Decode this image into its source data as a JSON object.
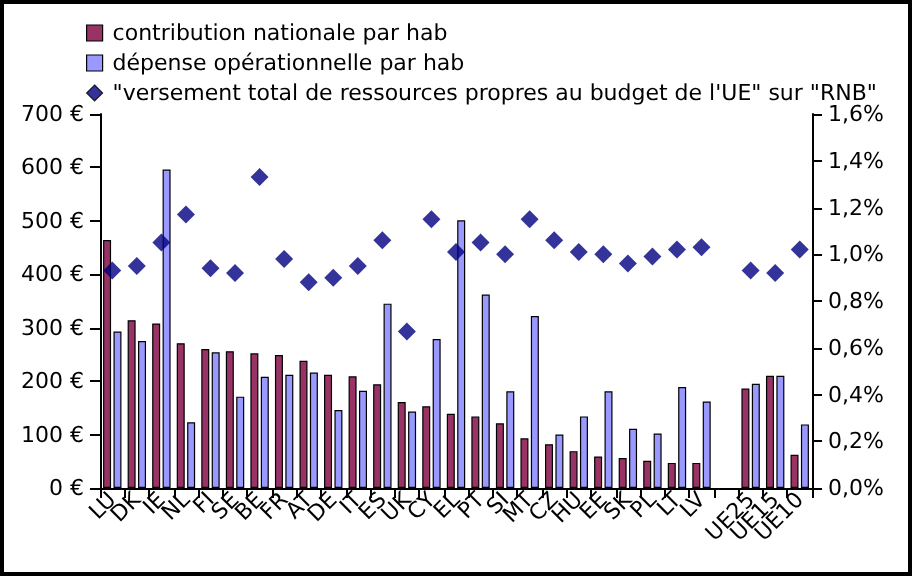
{
  "chart_data": {
    "type": "bar",
    "categories": [
      "LU",
      "DK",
      "IE",
      "NL",
      "FI",
      "SE",
      "BE",
      "FR",
      "AT",
      "DE",
      "IT",
      "ES",
      "UK",
      "CY",
      "EL",
      "PT",
      "SI",
      "MT",
      "CZ",
      "HU",
      "EE",
      "SK",
      "PL",
      "LT",
      "LV",
      null,
      "UE25",
      "UE15",
      "UE10"
    ],
    "series": [
      {
        "name": "contribution nationale par hab",
        "color": "#993366",
        "values": [
          464,
          314,
          308,
          271,
          260,
          256,
          252,
          249,
          238,
          212,
          209,
          194,
          161,
          153,
          139,
          134,
          121,
          93,
          82,
          69,
          59,
          56,
          51,
          47,
          47,
          null,
          186,
          210,
          62
        ]
      },
      {
        "name": "dépense opérationnelle par hab",
        "color": "#9999ff",
        "values": [
          293,
          275,
          596,
          123,
          254,
          171,
          208,
          212,
          216,
          146,
          182,
          345,
          143,
          279,
          501,
          362,
          181,
          322,
          100,
          134,
          181,
          111,
          102,
          189,
          162,
          null,
          195,
          210,
          119
        ]
      },
      {
        "name": "\"versement total de ressources propres au budget de l'UE\" sur \"RNB\"",
        "type": "scatter",
        "axis": "y2",
        "marker": "diamond",
        "color": "#000080",
        "values": [
          0.93,
          0.95,
          1.05,
          1.17,
          0.94,
          0.92,
          1.33,
          0.98,
          0.88,
          0.9,
          0.95,
          1.06,
          0.67,
          1.15,
          1.01,
          1.05,
          1.0,
          1.15,
          1.06,
          1.01,
          1.0,
          0.96,
          0.99,
          1.02,
          1.03,
          null,
          0.93,
          0.92,
          1.02
        ]
      }
    ],
    "ylim": [
      0,
      700
    ],
    "yticks": [
      {
        "value": 0,
        "label": "0 €"
      },
      {
        "value": 100,
        "label": "100 €"
      },
      {
        "value": 200,
        "label": "200 €"
      },
      {
        "value": 300,
        "label": "300 €"
      },
      {
        "value": 400,
        "label": "400 €"
      },
      {
        "value": 500,
        "label": "500 €"
      },
      {
        "value": 600,
        "label": "600 €"
      },
      {
        "value": 700,
        "label": "700 €"
      }
    ],
    "y2lim": [
      0,
      1.6
    ],
    "y2ticks": [
      {
        "value": 0,
        "label": "0,0%"
      },
      {
        "value": 0.2,
        "label": "0,2%"
      },
      {
        "value": 0.4,
        "label": "0,4%"
      },
      {
        "value": 0.6,
        "label": "0,6%"
      },
      {
        "value": 0.8,
        "label": "0,8%"
      },
      {
        "value": 1.0,
        "label": "1,0%"
      },
      {
        "value": 1.2,
        "label": "1,2%"
      },
      {
        "value": 1.4,
        "label": "1,4%"
      },
      {
        "value": 1.6,
        "label": "1,6%"
      }
    ],
    "grid": false,
    "legend": "top left"
  }
}
